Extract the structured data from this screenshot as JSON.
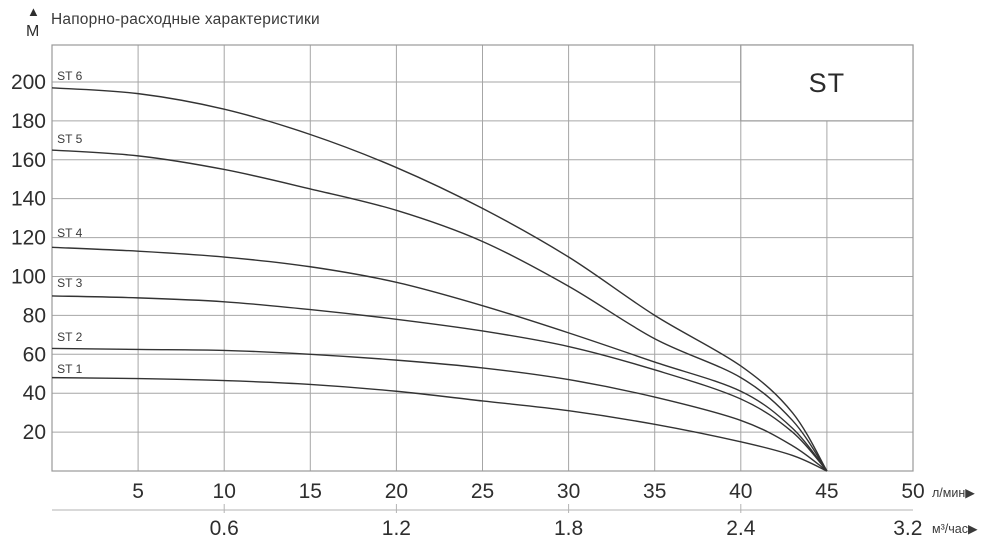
{
  "icons": {
    "up_arrow": "▲",
    "right_arrow": "▶"
  },
  "chart_data": {
    "type": "line",
    "title": "Напорно-расходные характеристики",
    "y_unit": "М",
    "x_unit_primary": "л/мин",
    "x_unit_secondary": "м³/час",
    "xlim": [
      0,
      50
    ],
    "ylim": [
      0,
      219
    ],
    "grid": true,
    "legend_position": "top-right-box",
    "series_box_label": "ST",
    "x_gridlines": [
      5,
      10,
      15,
      20,
      25,
      30,
      35,
      40,
      45
    ],
    "y_gridlines": [
      20,
      40,
      60,
      80,
      100,
      120,
      140,
      160,
      180,
      200
    ],
    "x_tick_labels_primary": [
      "5",
      "10",
      "15",
      "20",
      "25",
      "30",
      "35",
      "40",
      "45",
      "50"
    ],
    "x_tick_positions_primary": [
      5,
      10,
      15,
      20,
      25,
      30,
      35,
      40,
      45,
      50
    ],
    "y_tick_labels": [
      "20",
      "40",
      "60",
      "80",
      "100",
      "120",
      "140",
      "160",
      "180",
      "200"
    ],
    "x_ticks_secondary": [
      {
        "x": 10,
        "label": "0.6"
      },
      {
        "x": 20,
        "label": "1.2"
      },
      {
        "x": 30,
        "label": "1.8"
      },
      {
        "x": 40,
        "label": "2.4"
      }
    ],
    "x_secondary_end_label": {
      "x": 49.7,
      "label": "3.2"
    },
    "x_samples": [
      0,
      5,
      10,
      15,
      20,
      25,
      30,
      35,
      40,
      43,
      45
    ],
    "series": [
      {
        "name": "ST 6",
        "values": [
          197,
          194,
          186,
          173,
          156,
          135,
          110,
          80,
          54,
          30,
          0
        ],
        "label_x": 0.3,
        "label_y": 201.0
      },
      {
        "name": "ST 5",
        "values": [
          165,
          162,
          155,
          145,
          134,
          118,
          95,
          68,
          48,
          26,
          0
        ],
        "label_x": 0.3,
        "label_y": 168.6
      },
      {
        "name": "ST 4",
        "values": [
          115,
          113,
          110,
          105,
          97,
          85,
          71,
          56,
          41,
          22,
          0
        ],
        "label_x": 0.3,
        "label_y": 120.3
      },
      {
        "name": "ST 3",
        "values": [
          90,
          89,
          87,
          83,
          78,
          72,
          64,
          52,
          37,
          20,
          0
        ],
        "label_x": 0.3,
        "label_y": 94.6
      },
      {
        "name": "ST 2",
        "values": [
          63,
          62.5,
          62,
          60,
          57,
          53,
          47,
          38,
          26,
          13,
          0
        ],
        "label_x": 0.3,
        "label_y": 66.8
      },
      {
        "name": "ST 1",
        "values": [
          48,
          47.5,
          46.5,
          44.5,
          41,
          36,
          31,
          24,
          15,
          8,
          0
        ],
        "label_x": 0.3,
        "label_y": 50.4
      }
    ],
    "colors": {
      "curve": "#333333",
      "grid": "#a6a6a6",
      "border": "#999999",
      "secondary_line": "#b3b3b3",
      "text": "#2e2e2e",
      "background": "#ffffff"
    }
  }
}
